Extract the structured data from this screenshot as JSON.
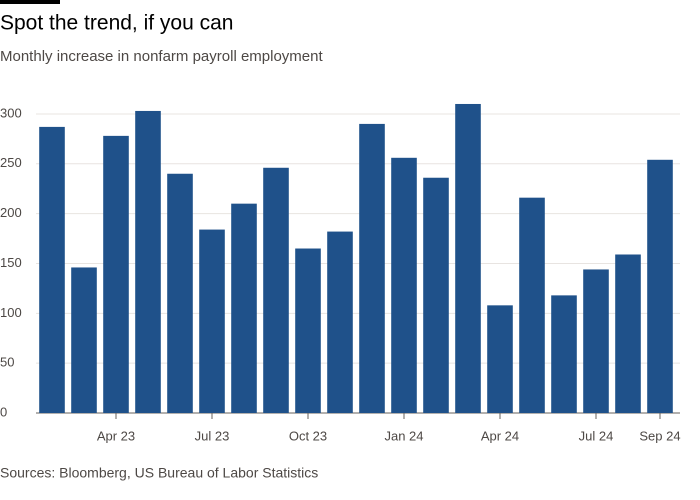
{
  "chart_data": {
    "type": "bar",
    "title": "Spot the trend, if you can",
    "subtitle": "Monthly increase in nonfarm payroll employment",
    "source": "Sources: Bloomberg, US Bureau of Labor Statistics",
    "categories": [
      null,
      null,
      "Apr 23",
      null,
      null,
      "Jul 23",
      null,
      null,
      "Oct 23",
      null,
      null,
      "Jan 24",
      null,
      null,
      "Apr 24",
      null,
      null,
      "Jul 24",
      null,
      "Sep 24"
    ],
    "values": [
      287,
      146,
      278,
      303,
      240,
      184,
      210,
      246,
      165,
      182,
      290,
      256,
      236,
      310,
      108,
      216,
      118,
      144,
      159,
      254
    ],
    "color": "#1f518a",
    "ylim": [
      0,
      320
    ],
    "yticks": [
      0,
      50,
      100,
      150,
      200,
      250,
      300
    ],
    "grid": true
  }
}
